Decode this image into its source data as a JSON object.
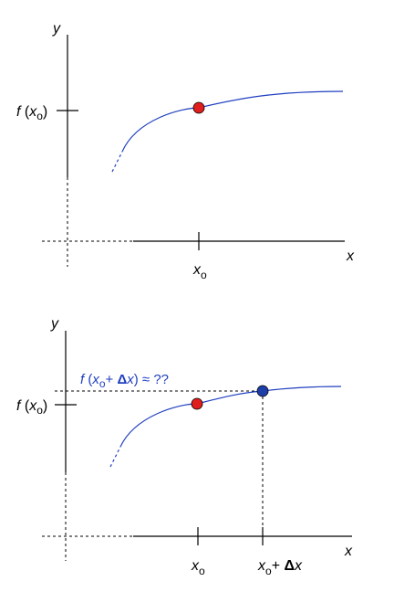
{
  "colors": {
    "axis": "#000000",
    "curve": "#1f3fbf",
    "point_red": "#e01e1e",
    "point_blue": "#1f3fa8",
    "label_blue": "#1f3fbf"
  },
  "top_graph": {
    "y_axis_label": "y",
    "x_axis_label": "x",
    "fx_label": {
      "f": "f",
      "open": " (",
      "x": "x",
      "sub": "o",
      "close": ")"
    },
    "x0_label": {
      "x": "x",
      "sub": "o"
    }
  },
  "bottom_graph": {
    "y_axis_label": "y",
    "x_axis_label": "x",
    "fx_label": {
      "f": "f",
      "open": " (",
      "x": "x",
      "sub": "o",
      "close": ")"
    },
    "x0_label": {
      "x": "x",
      "sub": "o"
    },
    "x0dx_label": {
      "x": "x",
      "sub": "o",
      "plus": "+ ",
      "delta": "Δ",
      "x2": "x"
    },
    "question_label": {
      "f": "f",
      "open": " (",
      "x": "x",
      "sub": "o",
      "plus": "+ ",
      "delta": "Δ",
      "x2": "x",
      "tail": ") ≈ ??"
    }
  }
}
